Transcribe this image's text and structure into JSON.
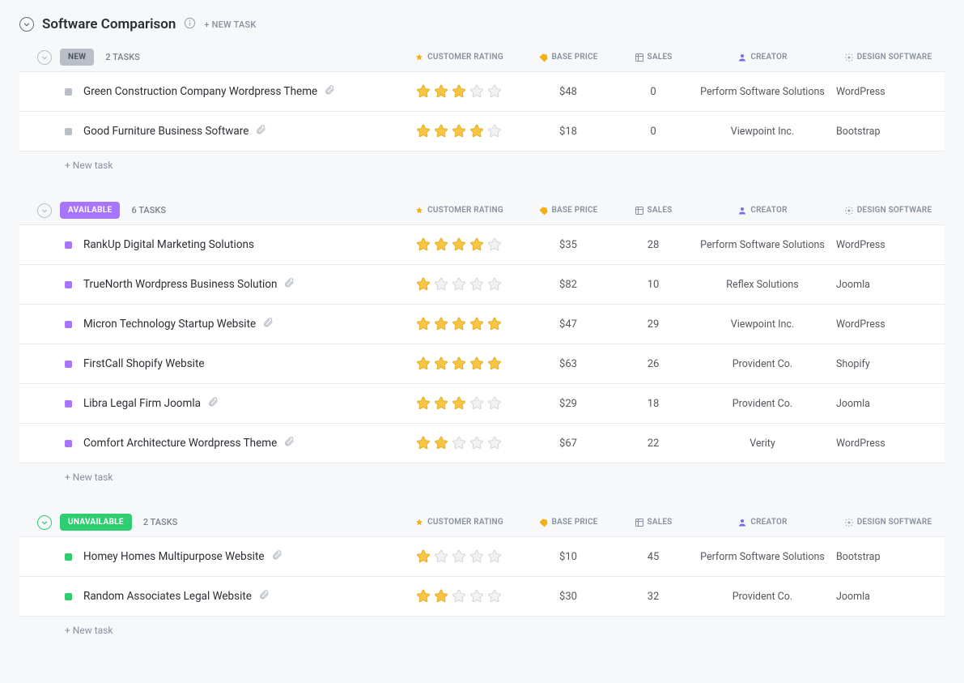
{
  "header": {
    "title": "Software Comparison",
    "new_task_label": "+ NEW TASK"
  },
  "columns": {
    "rating": "CUSTOMER RATING",
    "price": "BASE PRICE",
    "sales": "SALES",
    "creator": "CREATOR",
    "design": "DESIGN SOFTWARE"
  },
  "column_icons": {
    "rating_color": "#f5b014",
    "price_color": "#f5b014",
    "sales_color": "#87909e",
    "creator_color": "#7b68ee",
    "design_color": "#9aa0ac"
  },
  "star_colors": {
    "filled_fill": "#f7c544",
    "filled_stroke": "#e6a817",
    "empty_fill": "#f2f2f2",
    "empty_stroke": "#d0d0d0"
  },
  "new_task_row_label": "+ New task",
  "groups": [
    {
      "status_label": "NEW",
      "status_bg": "#b9bec7",
      "status_text": "#4f5762",
      "square_color": "#b9bec7",
      "collapse_style": "grey",
      "count_label": "2 TASKS",
      "tasks": [
        {
          "name": "Green Construction Company Wordpress Theme",
          "rating": 3,
          "price": "$48",
          "sales": "0",
          "creator": "Perform Software Solutions",
          "design": "WordPress",
          "attach": true
        },
        {
          "name": "Good Furniture Business Software",
          "rating": 4,
          "price": "$18",
          "sales": "0",
          "creator": "Viewpoint Inc.",
          "design": "Bootstrap",
          "attach": true
        }
      ]
    },
    {
      "status_label": "AVAILABLE",
      "status_bg": "#a875ff",
      "status_text": "#ffffff",
      "square_color": "#a875ff",
      "collapse_style": "grey",
      "count_label": "6 TASKS",
      "tasks": [
        {
          "name": "RankUp Digital Marketing Solutions",
          "rating": 4,
          "price": "$35",
          "sales": "28",
          "creator": "Perform Software Solutions",
          "design": "WordPress",
          "attach": false
        },
        {
          "name": "TrueNorth Wordpress Business Solution",
          "rating": 1,
          "price": "$82",
          "sales": "10",
          "creator": "Reflex Solutions",
          "design": "Joomla",
          "attach": true
        },
        {
          "name": "Micron Technology Startup Website",
          "rating": 5,
          "price": "$47",
          "sales": "29",
          "creator": "Viewpoint Inc.",
          "design": "WordPress",
          "attach": true
        },
        {
          "name": "FirstCall Shopify Website",
          "rating": 5,
          "price": "$63",
          "sales": "26",
          "creator": "Provident Co.",
          "design": "Shopify",
          "attach": false
        },
        {
          "name": "Libra Legal Firm Joomla",
          "rating": 3,
          "price": "$29",
          "sales": "18",
          "creator": "Provident Co.",
          "design": "Joomla",
          "attach": true
        },
        {
          "name": "Comfort Architecture Wordpress Theme",
          "rating": 2,
          "price": "$67",
          "sales": "22",
          "creator": "Verity",
          "design": "WordPress",
          "attach": true
        }
      ]
    },
    {
      "status_label": "UNAVAILABLE",
      "status_bg": "#2ecd6f",
      "status_text": "#ffffff",
      "square_color": "#2ecd6f",
      "collapse_style": "green",
      "count_label": "2 TASKS",
      "tasks": [
        {
          "name": "Homey Homes Multipurpose Website",
          "rating": 1,
          "price": "$10",
          "sales": "45",
          "creator": "Perform Software Solutions",
          "design": "Bootstrap",
          "attach": true
        },
        {
          "name": "Random Associates Legal Website",
          "rating": 2,
          "price": "$30",
          "sales": "32",
          "creator": "Provident Co.",
          "design": "Joomla",
          "attach": true
        }
      ]
    }
  ]
}
